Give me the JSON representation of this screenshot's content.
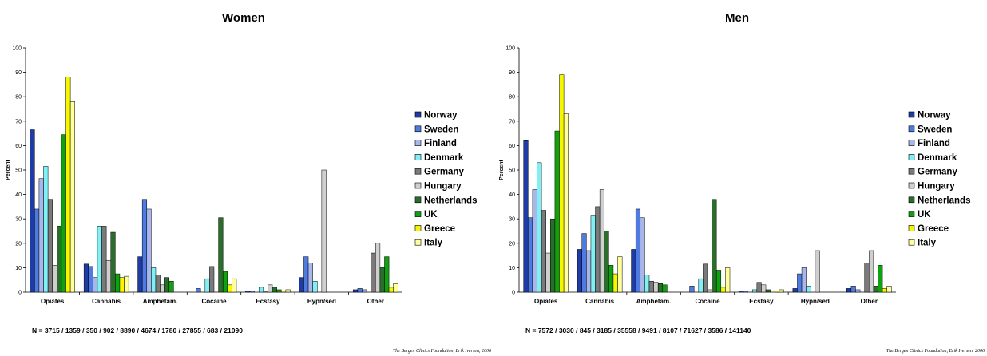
{
  "colors": {
    "Norway": "#1f3ba6",
    "Sweden": "#4f7be0",
    "Finland": "#a9b6ea",
    "Denmark": "#7ff0f4",
    "Germany": "#7a7a7a",
    "Hungary": "#cfcfcf",
    "Netherlands": "#2b6e2b",
    "UK": "#0fa20f",
    "Greece": "#f6f600",
    "Italy": "#ffff9c"
  },
  "chart_data": [
    {
      "type": "bar",
      "title": "Women",
      "ylabel": "Percent",
      "ylim": [
        0,
        100
      ],
      "yticks": [
        "0",
        "10",
        "20",
        "30",
        "40",
        "50",
        "60",
        "70",
        "80",
        "90",
        "100"
      ],
      "legend_position": "right",
      "categories": [
        "Opiates",
        "Cannabis",
        "Amphetam.",
        "Cocaine",
        "Ecstasy",
        "Hypn/sed",
        "Other"
      ],
      "series": [
        {
          "name": "Norway",
          "values": [
            66.5,
            11.5,
            14.5,
            0,
            0.5,
            6,
            1
          ]
        },
        {
          "name": "Sweden",
          "values": [
            34,
            10.5,
            38,
            1.5,
            0.5,
            14.5,
            1.5
          ]
        },
        {
          "name": "Finland",
          "values": [
            46.5,
            6,
            34,
            0,
            0,
            12,
            1
          ]
        },
        {
          "name": "Denmark",
          "values": [
            51.5,
            27,
            10,
            5.5,
            2,
            4.5,
            0
          ]
        },
        {
          "name": "Germany",
          "values": [
            38,
            27,
            7,
            10.5,
            0.5,
            0,
            16
          ]
        },
        {
          "name": "Hungary",
          "values": [
            11,
            13,
            3,
            0,
            3,
            50,
            20
          ]
        },
        {
          "name": "Netherlands",
          "values": [
            27,
            24.5,
            6,
            30.5,
            2,
            0,
            10
          ]
        },
        {
          "name": "UK",
          "values": [
            64.5,
            7.5,
            4.5,
            8.5,
            1,
            0,
            14.5
          ]
        },
        {
          "name": "Greece",
          "values": [
            88,
            6,
            0,
            3,
            0.5,
            0,
            2
          ]
        },
        {
          "name": "Italy",
          "values": [
            78,
            6.5,
            0,
            5.5,
            1,
            0,
            3.5
          ]
        }
      ],
      "note": "N = 3715 / 1359 / 350 / 902 / 8890 /  4674 / 1780 / 27855 / 683 / 21090",
      "credit": "The Bergen Clinics Foundation, Erik Iversen, 2006"
    },
    {
      "type": "bar",
      "title": "Men",
      "ylabel": "Percent",
      "ylim": [
        0,
        100
      ],
      "yticks": [
        "0",
        "10",
        "20",
        "30",
        "40",
        "50",
        "60",
        "70",
        "80",
        "90",
        "100"
      ],
      "legend_position": "right",
      "categories": [
        "Opiates",
        "Cannabis",
        "Amphetam.",
        "Cocaine",
        "Ecstasy",
        "Hypn/sed",
        "Other"
      ],
      "series": [
        {
          "name": "Norway",
          "values": [
            62,
            17.5,
            17.5,
            0,
            0.5,
            1.5,
            1.5
          ]
        },
        {
          "name": "Sweden",
          "values": [
            30.5,
            24,
            34,
            2.5,
            0.5,
            7.5,
            2.5
          ]
        },
        {
          "name": "Finland",
          "values": [
            42,
            17,
            30.5,
            0,
            0,
            10,
            1
          ]
        },
        {
          "name": "Denmark",
          "values": [
            53,
            31.5,
            7,
            5.5,
            1,
            2.5,
            0
          ]
        },
        {
          "name": "Germany",
          "values": [
            33.5,
            35,
            4.5,
            11.5,
            4,
            0,
            12
          ]
        },
        {
          "name": "Hungary",
          "values": [
            16,
            42,
            4,
            1,
            3,
            17,
            17
          ]
        },
        {
          "name": "Netherlands",
          "values": [
            30,
            25,
            3.5,
            38,
            1,
            0,
            2.5
          ]
        },
        {
          "name": "UK",
          "values": [
            66,
            11,
            3,
            9,
            0,
            0,
            11
          ]
        },
        {
          "name": "Greece",
          "values": [
            89,
            7.5,
            0,
            2,
            0.5,
            0,
            1.5
          ]
        },
        {
          "name": "Italy",
          "values": [
            73,
            14.5,
            0,
            10,
            1,
            0,
            2.5
          ]
        }
      ],
      "note": "N = 7572 / 3030 / 845 / 3185 / 35558 /  9491 / 8107 / 71627 / 3586 / 141140",
      "credit": "The Bergen Clinics Foundation, Erik Iversen, 2006"
    }
  ]
}
